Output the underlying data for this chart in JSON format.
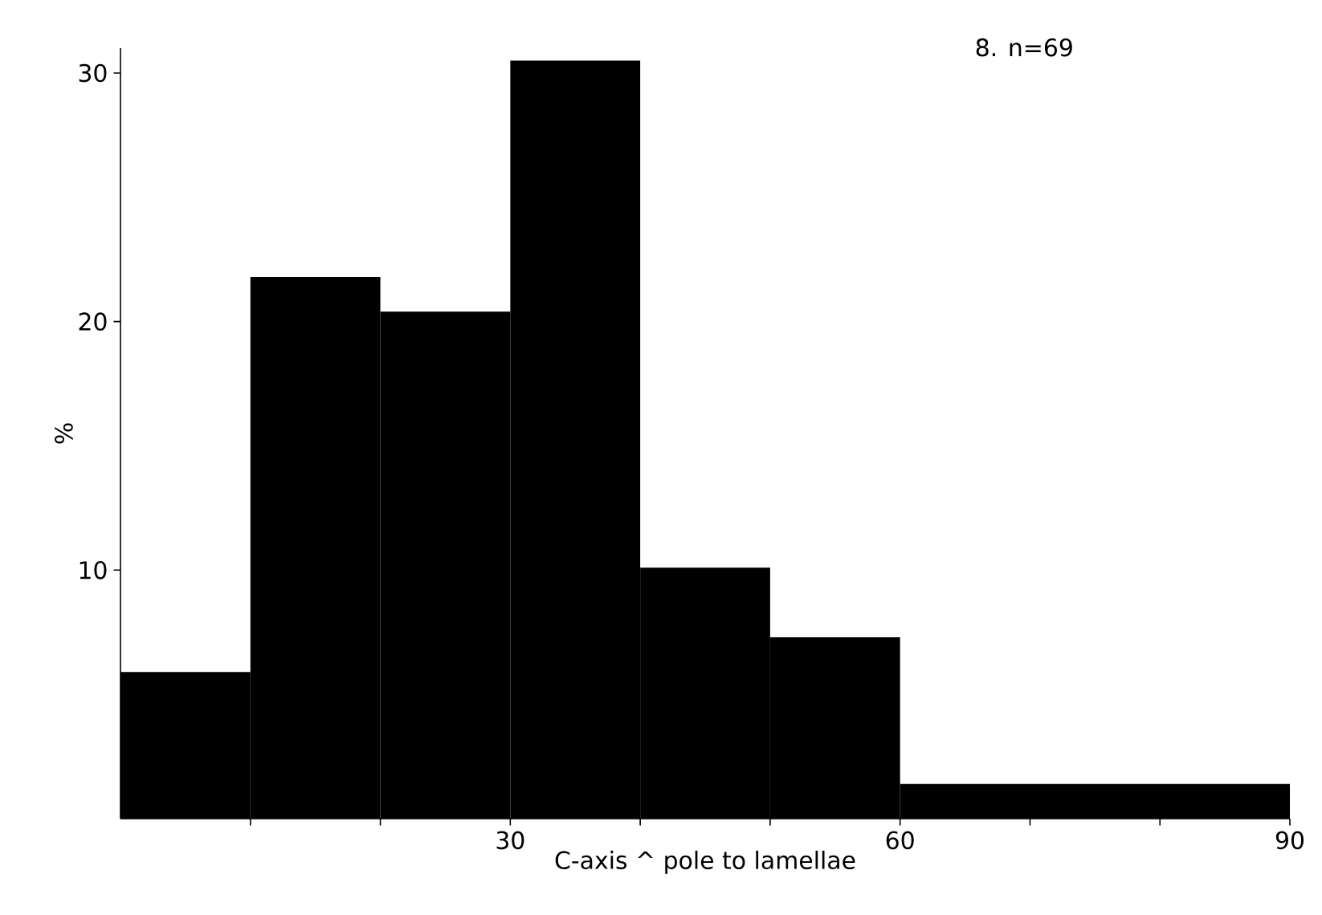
{
  "chart_data": {
    "type": "histogram",
    "xlabel": "C-axis ^ pole to lamellae",
    "ylabel": "%",
    "annotations": [
      "8.  n=69"
    ],
    "bins": [
      0,
      10,
      20,
      30,
      40,
      50,
      60,
      90
    ],
    "values": [
      5.9,
      21.8,
      20.4,
      30.5,
      10.1,
      7.3,
      1.4
    ],
    "color": "#000000",
    "xlim": [
      0,
      90
    ],
    "ylim": [
      0,
      31
    ],
    "xticks": [
      {
        "value": 10,
        "label": null
      },
      {
        "value": 20,
        "label": null
      },
      30,
      {
        "value": 40,
        "label": null
      },
      {
        "value": 50,
        "label": null
      },
      60,
      {
        "value": 70,
        "label": null
      },
      {
        "value": 80,
        "label": null
      },
      90
    ],
    "yticks": [
      10,
      20,
      30
    ],
    "grid": false
  }
}
